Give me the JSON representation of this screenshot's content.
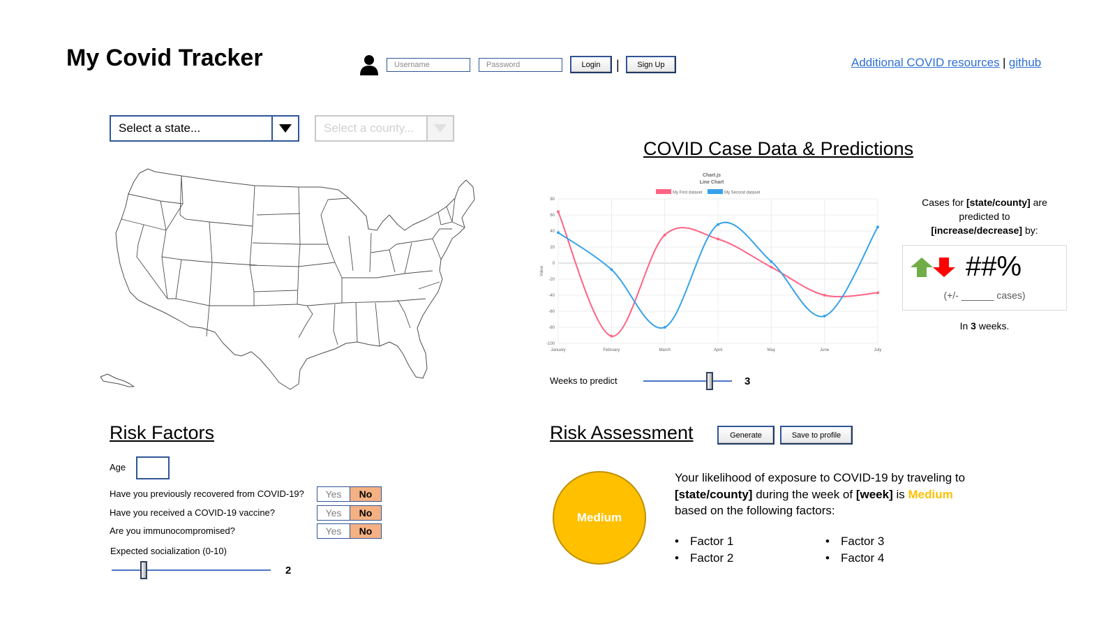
{
  "header": {
    "title": "My Covid Tracker",
    "username_placeholder": "Username",
    "password_placeholder": "Password",
    "login_label": "Login",
    "separator": "|",
    "signup_label": "Sign Up",
    "resources_link": "Additional COVID resources",
    "github_link": "github"
  },
  "location": {
    "state_select": "Select a state...",
    "county_select": "Select a county..."
  },
  "chart_section": {
    "title": "COVID Case Data & Predictions",
    "weeks_label": "Weeks to predict",
    "weeks_value": "3",
    "weeks_level": 3
  },
  "chart_data": {
    "type": "line",
    "title": "Chart.js",
    "subtitle": "Line Chart",
    "xlabel": "",
    "ylabel": "Value",
    "categories": [
      "January",
      "February",
      "March",
      "April",
      "May",
      "June",
      "July"
    ],
    "ylim": [
      -100,
      80
    ],
    "yticks": [
      80,
      60,
      40,
      20,
      0,
      -20,
      -40,
      -60,
      -80,
      -100
    ],
    "grid": true,
    "legend_position": "top",
    "series": [
      {
        "name": "My First dataset",
        "color": "#ff6384",
        "values": [
          64,
          -91,
          35,
          30,
          -5,
          -40,
          -37
        ]
      },
      {
        "name": "My Second dataset",
        "color": "#36a2eb",
        "values": [
          38,
          -8,
          -80,
          48,
          2,
          -66,
          45
        ]
      }
    ]
  },
  "prediction": {
    "line1_pre": "Cases for ",
    "line1_bold": "[state/county]",
    "line1_post": " are",
    "line2": "predicted to",
    "line3_bold": "[increase/decrease]",
    "line3_post": " by:",
    "value": "##%",
    "cases": "(+/- ______ cases)",
    "weeks_pre": "In ",
    "weeks_bold": "3",
    "weeks_post": " weeks.",
    "up_color": "#70ad47",
    "down_color": "#ff0000"
  },
  "risk_factors": {
    "title": "Risk Factors",
    "age_label": "Age",
    "questions": [
      {
        "text": "Have you previously recovered from COVID-19?",
        "yes": "Yes",
        "no": "No",
        "selected": "No"
      },
      {
        "text": "Have you received a COVID-19 vaccine?",
        "yes": "Yes",
        "no": "No",
        "selected": "No"
      },
      {
        "text": "Are you immunocompromised?",
        "yes": "Yes",
        "no": "No",
        "selected": "No"
      }
    ],
    "socialization_label": "Expected socialization (0-10)",
    "socialization_value": "2",
    "socialization_level": 2
  },
  "risk_assessment": {
    "title": "Risk Assessment",
    "generate_label": "Generate",
    "save_label": "Save to profile",
    "level": "Medium",
    "level_color": "#ffc000",
    "text_pre": "Your likelihood of exposure to COVID-19 by traveling to ",
    "place": "[state/county]",
    "text_mid": " during the week of ",
    "week": "[week]",
    "text_is": " is ",
    "text_post": " based on the following factors:",
    "factors": [
      "Factor 1",
      "Factor 2",
      "Factor 3",
      "Factor 4"
    ]
  }
}
